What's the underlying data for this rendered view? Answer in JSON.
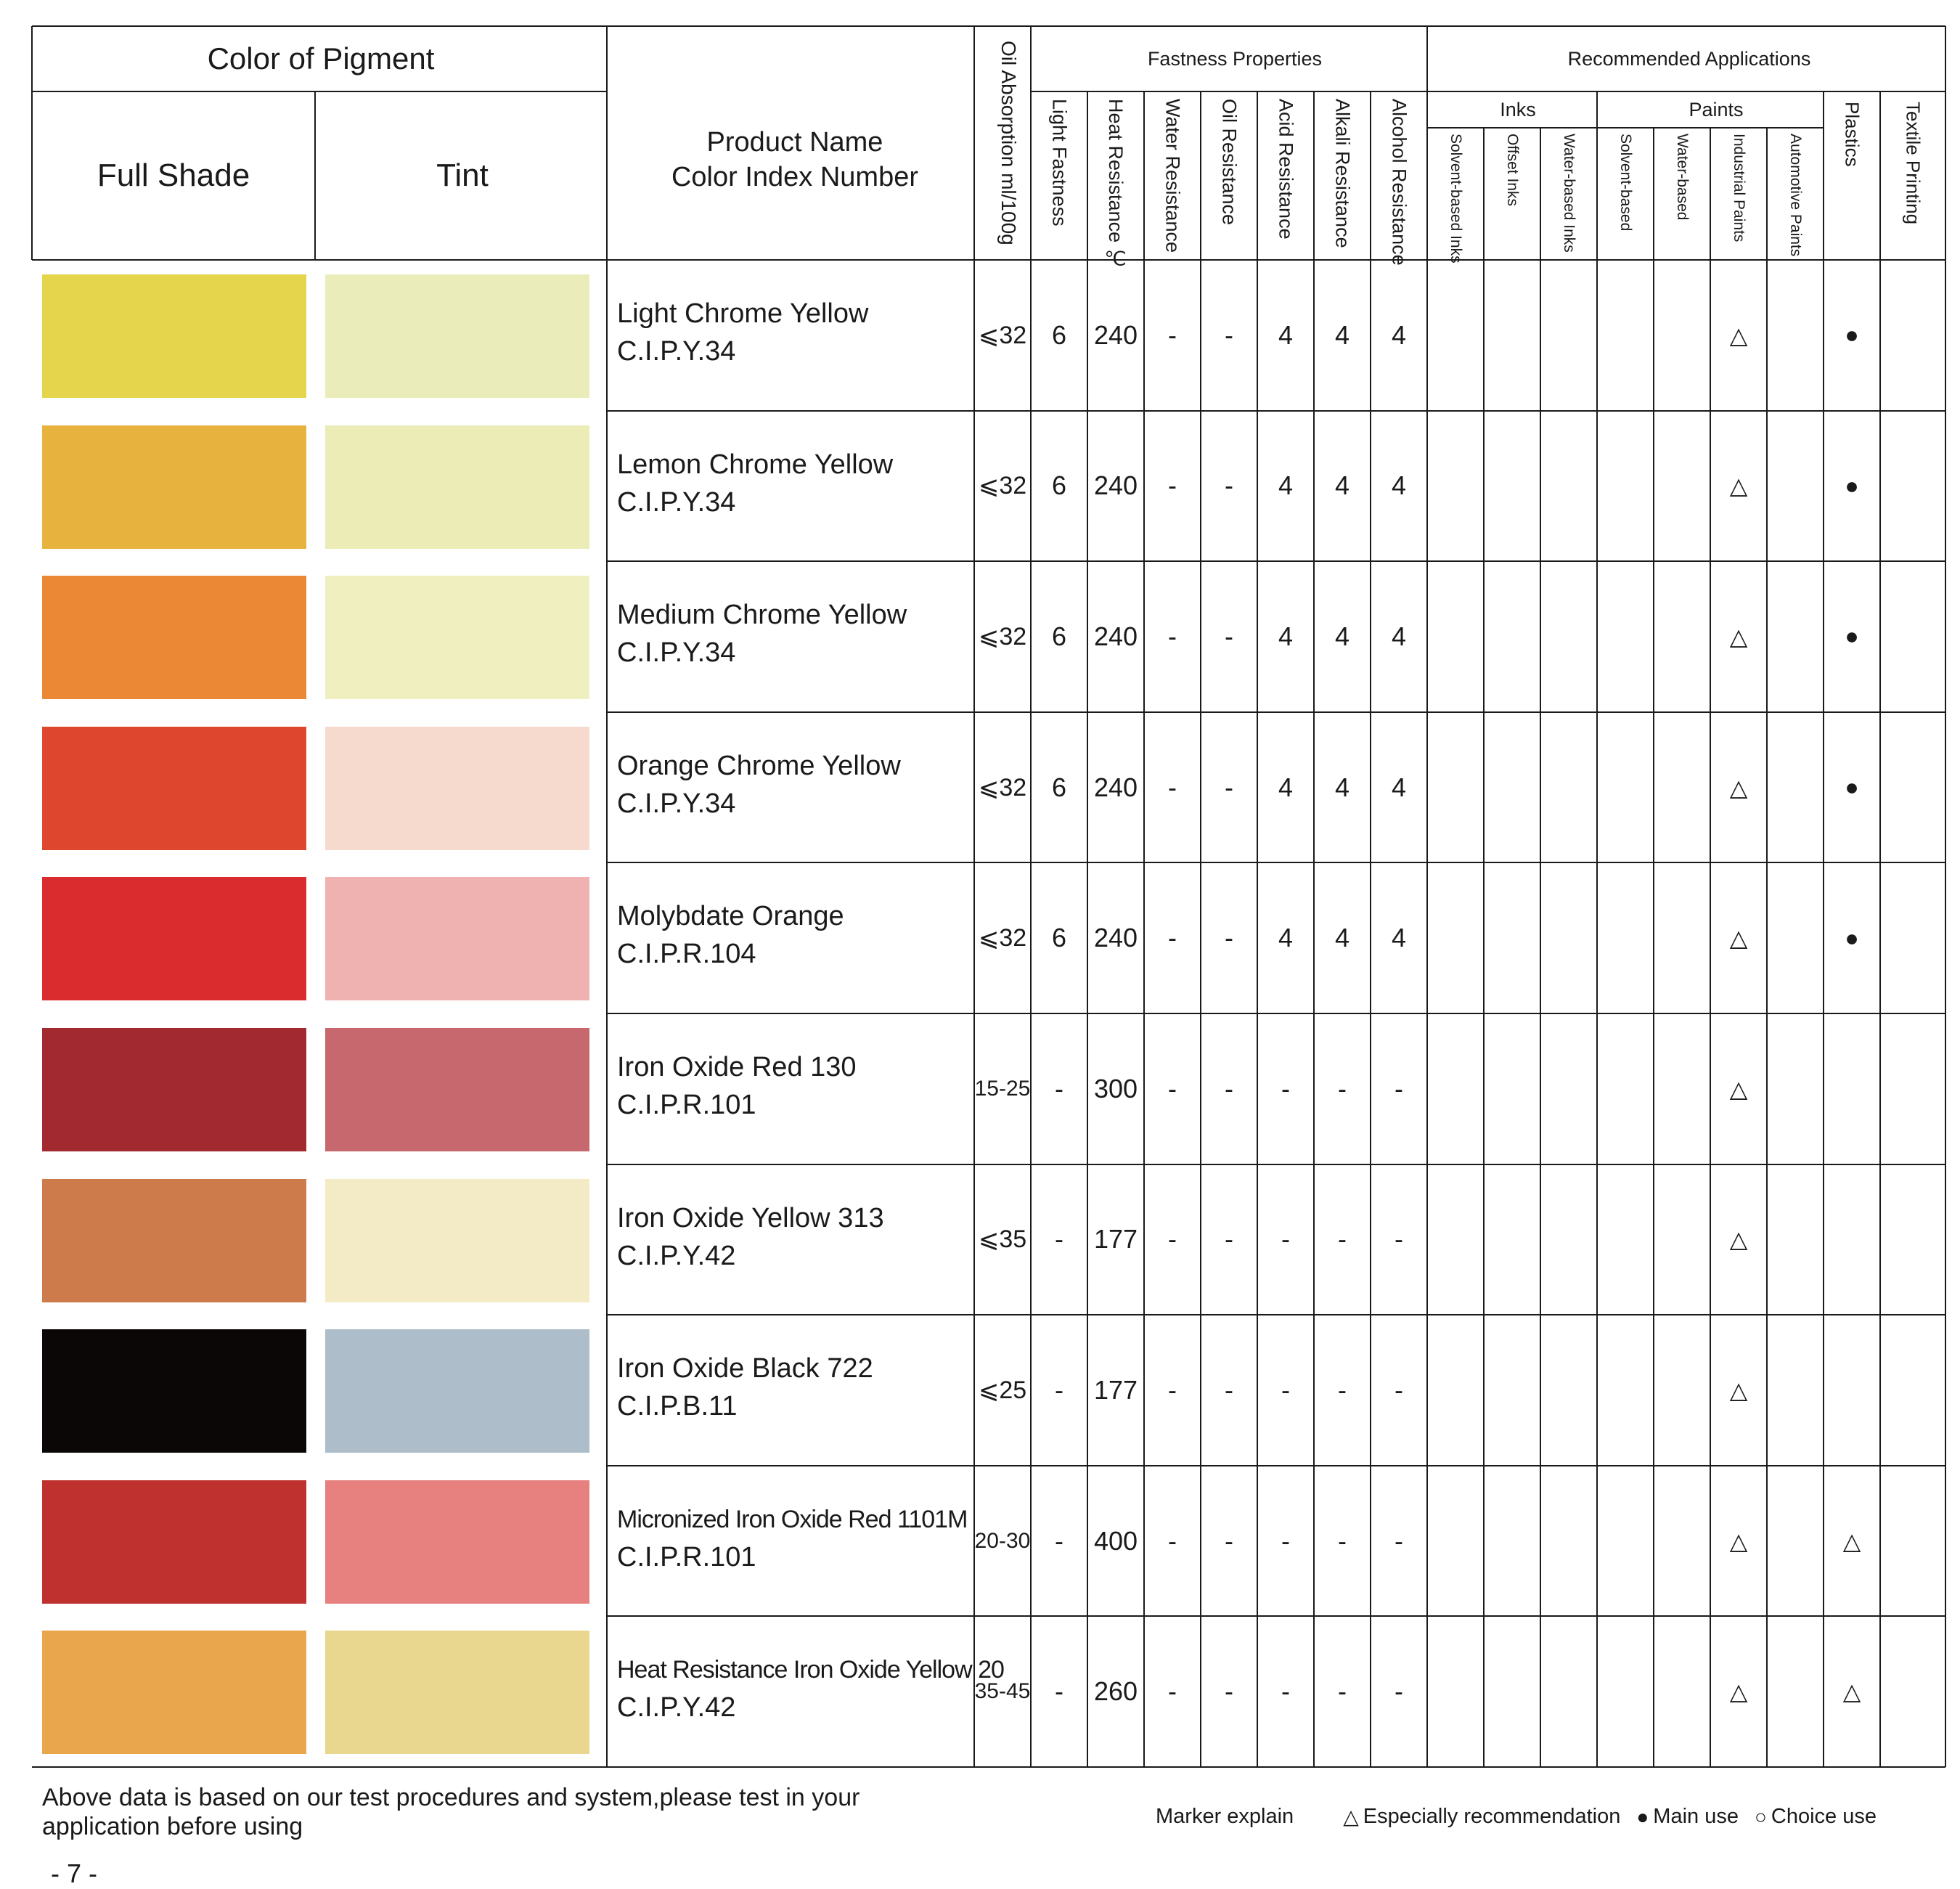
{
  "header": {
    "color_of_pigment": "Color of  Pigment",
    "full_shade": "Full Shade",
    "tint": "Tint",
    "product_name": "Product Name",
    "color_index": "Color Index Number",
    "oil_absorption": "Oil Absorption ml/100g",
    "fastness_group": "Fastness Properties",
    "fastness_cols": [
      "Light Fastness",
      "Heat Resistance ℃",
      "Water Resistance",
      "Oil Resistance",
      "Acid Resistance",
      "Alkali Resistance",
      "Alcohol Resistance"
    ],
    "applications_group": "Recommended Applications",
    "inks_group": "Inks",
    "inks_cols": [
      "Solvent-based Inks",
      "Offset Inks",
      "Water-based Inks"
    ],
    "paints_group": "Paints",
    "paints_cols": [
      "Solvent-based",
      "Water-based",
      "Industrial Paints",
      "Automotive Paints"
    ],
    "plastics": "Plastics",
    "textile": "Textile Printing"
  },
  "rows": [
    {
      "full_color": "#E5D54C",
      "tint_color": "#EAEDB9",
      "name": "Light Chrome Yellow",
      "ci": "C.I.P.Y.34",
      "oil": "⩽32",
      "light": "6",
      "heat": "240",
      "water": "-",
      "oilres": "-",
      "acid": "4",
      "alkali": "4",
      "alcohol": "4",
      "industrial": "△",
      "plastics": "●"
    },
    {
      "full_color": "#E7B23E",
      "tint_color": "#EBECB6",
      "name": "Lemon Chrome Yellow",
      "ci": "C.I.P.Y.34",
      "oil": "⩽32",
      "light": "6",
      "heat": "240",
      "water": "-",
      "oilres": "-",
      "acid": "4",
      "alkali": "4",
      "alcohol": "4",
      "industrial": "△",
      "plastics": "●"
    },
    {
      "full_color": "#EA8836",
      "tint_color": "#EFEFC0",
      "name": "Medium Chrome Yellow",
      "ci": "C.I.P.Y.34",
      "oil": "⩽32",
      "light": "6",
      "heat": "240",
      "water": "-",
      "oilres": "-",
      "acid": "4",
      "alkali": "4",
      "alcohol": "4",
      "industrial": "△",
      "plastics": "●"
    },
    {
      "full_color": "#DF462E",
      "tint_color": "#F7DACE",
      "name": "Orange Chrome Yellow",
      "ci": "C.I.P.Y.34",
      "oil": "⩽32",
      "light": "6",
      "heat": "240",
      "water": "-",
      "oilres": "-",
      "acid": "4",
      "alkali": "4",
      "alcohol": "4",
      "industrial": "△",
      "plastics": "●"
    },
    {
      "full_color": "#DA2C2E",
      "tint_color": "#EFB2B0",
      "name": "Molybdate Orange",
      "ci": "C.I.P.R.104",
      "oil": "⩽32",
      "light": "6",
      "heat": "240",
      "water": "-",
      "oilres": "-",
      "acid": "4",
      "alkali": "4",
      "alcohol": "4",
      "industrial": "△",
      "plastics": "●"
    },
    {
      "full_color": "#A1292F",
      "tint_color": "#C6686D",
      "name": "Iron Oxide Red 130",
      "ci": "C.I.P.R.101",
      "oil": "15-25",
      "light": "-",
      "heat": "300",
      "water": "-",
      "oilres": "-",
      "acid": "-",
      "alkali": "-",
      "alcohol": "-",
      "industrial": "△",
      "plastics": ""
    },
    {
      "full_color": "#CE7B4C",
      "tint_color": "#F3EBC6",
      "name": "Iron Oxide Yellow 313",
      "ci": "C.I.P.Y.42",
      "oil": "⩽35",
      "light": "-",
      "heat": "177",
      "water": "-",
      "oilres": "-",
      "acid": "-",
      "alkali": "-",
      "alcohol": "-",
      "industrial": "△",
      "plastics": ""
    },
    {
      "full_color": "#0B0707",
      "tint_color": "#ADBDCA",
      "name": "Iron Oxide Black 722",
      "ci": "C.I.P.B.11",
      "oil": "⩽25",
      "light": "-",
      "heat": "177",
      "water": "-",
      "oilres": "-",
      "acid": "-",
      "alkali": "-",
      "alcohol": "-",
      "industrial": "△",
      "plastics": ""
    },
    {
      "full_color": "#BE312E",
      "tint_color": "#E68180",
      "name": "Micronized Iron Oxide Red 1101M",
      "ci": "C.I.P.R.101",
      "oil": "20-30",
      "light": "-",
      "heat": "400",
      "water": "-",
      "oilres": "-",
      "acid": "-",
      "alkali": "-",
      "alcohol": "-",
      "industrial": "△",
      "plastics": "△"
    },
    {
      "full_color": "#EAA64C",
      "tint_color": "#E9D78F",
      "name": "Heat Resistance Iron Oxide Yellow 20",
      "ci": "C.I.P.Y.42",
      "oil": "35-45",
      "light": "-",
      "heat": "260",
      "water": "-",
      "oilres": "-",
      "acid": "-",
      "alkali": "-",
      "alcohol": "-",
      "industrial": "△",
      "plastics": "△"
    }
  ],
  "footer": {
    "note_line1": "Above data is based on our test procedures and system,please test in your",
    "note_line2": "application before using",
    "page_number": "- 7 -",
    "marker_explain": "Marker explain",
    "especially_symbol": "△",
    "especially_label": "Especially recommendation",
    "main_symbol": "●",
    "main_label": "Main use",
    "choice_symbol": "○",
    "choice_label": "Choice use"
  }
}
